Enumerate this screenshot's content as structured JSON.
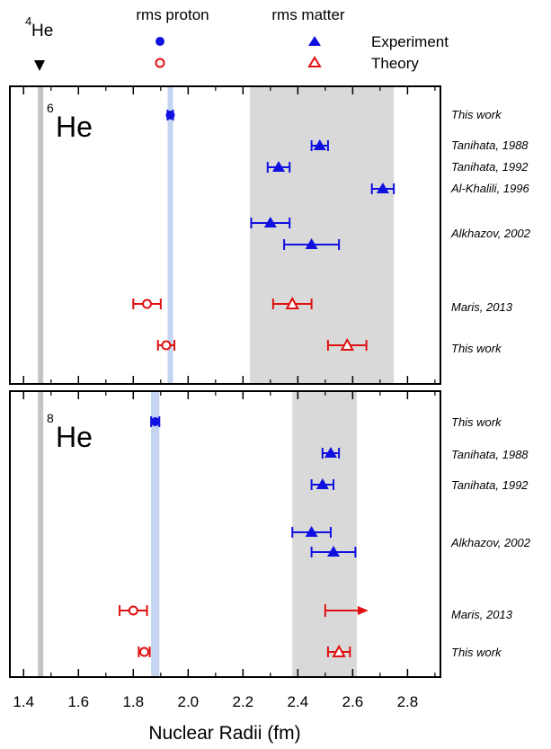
{
  "chart_data": {
    "type": "scatter",
    "xlabel": "Nuclear Radii (fm)",
    "xlim": [
      1.35,
      2.92
    ],
    "xticks": [
      "1.4",
      "1.6",
      "1.8",
      "2.0",
      "2.2",
      "2.4",
      "2.6",
      "2.8"
    ],
    "he4_label": "He",
    "he4_mass": "4",
    "he4_radius": 1.462,
    "colors": {
      "experiment": "#1010e0",
      "theory": "#e01010",
      "matter_band": "#d9d9d9",
      "proton_band": "#c3d5ef",
      "he4_band": "#c4c4c4"
    },
    "legend": {
      "col1": "rms proton",
      "col2": "rms matter",
      "row1": "Experiment",
      "row2": "Theory"
    },
    "panels": [
      {
        "isotope": "He",
        "mass": "6",
        "proton_band": [
          1.925,
          1.945
        ],
        "matter_band": [
          2.225,
          2.75
        ],
        "rows": [
          {
            "label": "This work",
            "kind": "experiment",
            "quantity": "proton",
            "value": 1.935,
            "err_low": 0.01,
            "err_high": 0.01
          },
          {
            "label": "Tanihata, 1988",
            "kind": "experiment",
            "quantity": "matter",
            "value": 2.48,
            "err_low": 0.03,
            "err_high": 0.03
          },
          {
            "label": "Tanihata, 1992",
            "kind": "experiment",
            "quantity": "matter",
            "value": 2.33,
            "err_low": 0.04,
            "err_high": 0.04
          },
          {
            "label": "Al-Khalili, 1996",
            "kind": "experiment",
            "quantity": "matter",
            "value": 2.71,
            "err_low": 0.04,
            "err_high": 0.04
          },
          {
            "label": "Alkhazov, 2002",
            "kind": "experiment",
            "quantity": "matter",
            "value": 2.3,
            "err_low": 0.07,
            "err_high": 0.07
          },
          {
            "label": "",
            "kind": "experiment",
            "quantity": "matter",
            "value": 2.45,
            "err_low": 0.1,
            "err_high": 0.1
          },
          {
            "label": "Maris, 2013",
            "kind": "theory",
            "quantity": "proton",
            "value": 1.85,
            "err_low": 0.05,
            "err_high": 0.05
          },
          {
            "label": "",
            "kind": "theory",
            "quantity": "matter",
            "value": 2.38,
            "err_low": 0.07,
            "err_high": 0.07
          },
          {
            "label": "This work",
            "kind": "theory",
            "quantity": "proton",
            "value": 1.92,
            "err_low": 0.03,
            "err_high": 0.03
          },
          {
            "label": "",
            "kind": "theory",
            "quantity": "matter",
            "value": 2.58,
            "err_low": 0.07,
            "err_high": 0.07
          }
        ]
      },
      {
        "isotope": "He",
        "mass": "8",
        "proton_band": [
          1.865,
          1.895
        ],
        "matter_band": [
          2.38,
          2.615
        ],
        "rows": [
          {
            "label": "This work",
            "kind": "experiment",
            "quantity": "proton",
            "value": 1.88,
            "err_low": 0.015,
            "err_high": 0.015
          },
          {
            "label": "Tanihata, 1988",
            "kind": "experiment",
            "quantity": "matter",
            "value": 2.52,
            "err_low": 0.03,
            "err_high": 0.03
          },
          {
            "label": "Tanihata, 1992",
            "kind": "experiment",
            "quantity": "matter",
            "value": 2.49,
            "err_low": 0.04,
            "err_high": 0.04
          },
          {
            "label": "Alkhazov, 2002",
            "kind": "experiment",
            "quantity": "matter",
            "value": 2.45,
            "err_low": 0.07,
            "err_high": 0.07
          },
          {
            "label": "",
            "kind": "experiment",
            "quantity": "matter",
            "value": 2.53,
            "err_low": 0.08,
            "err_high": 0.08
          },
          {
            "label": "Maris, 2013",
            "kind": "theory",
            "quantity": "proton",
            "value": 1.8,
            "err_low": 0.05,
            "err_high": 0.05
          },
          {
            "label": "",
            "kind": "theory",
            "quantity": "matter",
            "value": 2.5,
            "lower_limit": true
          },
          {
            "label": "This work",
            "kind": "theory",
            "quantity": "proton",
            "value": 1.84,
            "err_low": 0.02,
            "err_high": 0.02
          },
          {
            "label": "",
            "kind": "theory",
            "quantity": "matter",
            "value": 2.55,
            "err_low": 0.04,
            "err_high": 0.04
          }
        ]
      }
    ]
  }
}
